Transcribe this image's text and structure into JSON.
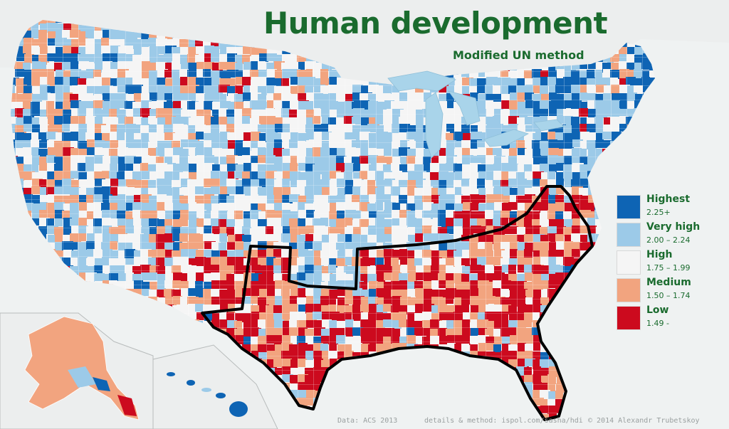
{
  "title": "Human development",
  "subtitle": "Modified UN method",
  "legend": {
    "items": [
      {
        "label": "Highest",
        "range": "2.25+",
        "color": "#0e64b4"
      },
      {
        "label": "Very high",
        "range": "2.00 – 2.24",
        "color": "#9ccae8"
      },
      {
        "label": "High",
        "range": "1.75 – 1.99",
        "color": "#f5f5f5"
      },
      {
        "label": "Medium",
        "range": "1.50 – 1.74",
        "color": "#f2a47f"
      },
      {
        "label": "Low",
        "range": "1.49 -",
        "color": "#cc0a1e"
      }
    ]
  },
  "footer": {
    "source": "Data: ACS 2013",
    "details": "details & method: ispol.com/sasha/hdi",
    "credit": "© 2014 Alexandr Trubetskoy"
  },
  "colors": {
    "land": "#f5f5f5",
    "water": "#a9d4ea",
    "surround": "#e8ecec",
    "outline": "#000000",
    "title": "#1a6b2e"
  }
}
